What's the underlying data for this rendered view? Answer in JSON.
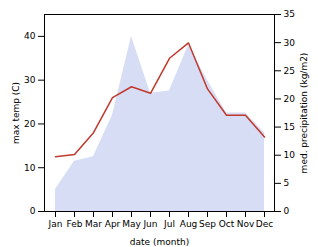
{
  "chart_data": {
    "type": "line",
    "xlabel": "date (month)",
    "ylabel": "max temp (C)",
    "y2label": "med. precipitation (kg/m2)",
    "categories": [
      "Jan",
      "Feb",
      "Mar",
      "Apr",
      "May",
      "Jun",
      "Jul",
      "Aug",
      "Sep",
      "Oct",
      "Nov",
      "Dec"
    ],
    "series": [
      {
        "type": "area",
        "color": "#c5cef0",
        "values": [
          5.0,
          11.5,
          12.5,
          22.0,
          40.0,
          27.0,
          27.5,
          38.0,
          30.0,
          22.5,
          22.5,
          18.0
        ]
      },
      {
        "type": "line",
        "color": "#c0392b",
        "values": [
          12.5,
          13.0,
          18.0,
          26.0,
          28.5,
          27.0,
          35.0,
          38.5,
          28.0,
          22.0,
          22.0,
          17.0
        ]
      }
    ],
    "ylim": [
      0,
      45
    ],
    "yticks": [
      0,
      10,
      20,
      30,
      40
    ],
    "y2lim": [
      0,
      35
    ],
    "y2ticks": [
      0,
      5,
      10,
      15,
      20,
      25,
      30,
      35
    ],
    "grid": false
  }
}
